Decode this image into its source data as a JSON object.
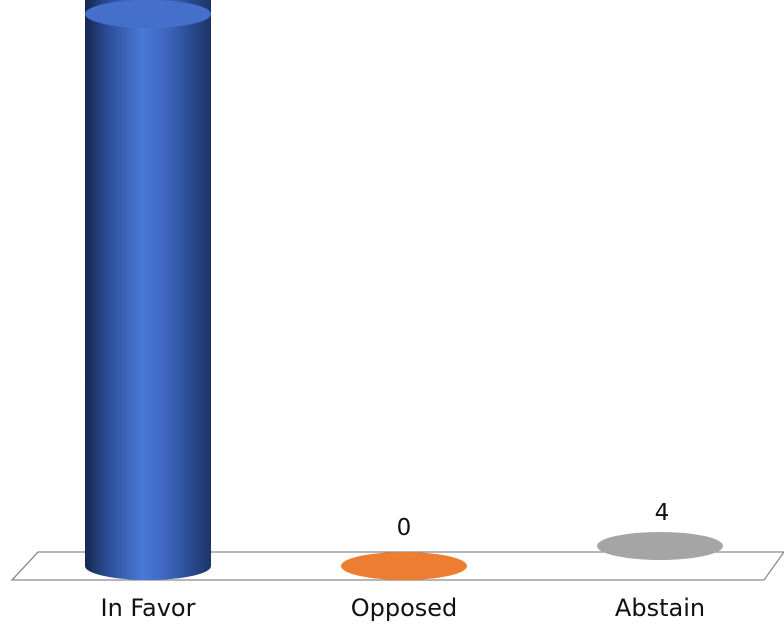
{
  "chart_data": {
    "type": "bar",
    "style": "3d-cylinder",
    "categories": [
      "In Favor",
      "Opposed",
      "Abstain"
    ],
    "values": [
      null,
      0,
      4
    ],
    "value_labels": [
      "",
      "0",
      "4"
    ],
    "colors": [
      "#3a68c4",
      "#ed7d31",
      "#a5a5a5"
    ],
    "grid": false,
    "legend": "none"
  }
}
